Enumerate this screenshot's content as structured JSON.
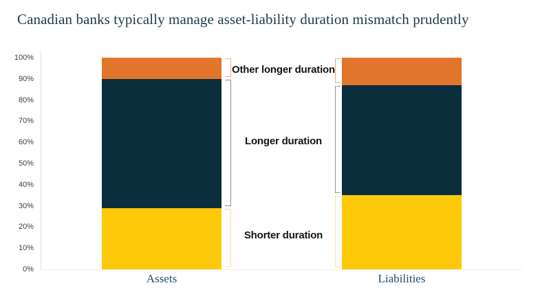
{
  "chart_data": {
    "type": "bar",
    "stacked": true,
    "title": "Canadian banks typically manage asset-liability duration mismatch prudently",
    "categories": [
      "Assets",
      "Liabilities"
    ],
    "series": [
      {
        "name": "Shorter duration",
        "values": [
          29,
          35
        ],
        "color": "#fec90a",
        "bracket_color": "#f9e2a2"
      },
      {
        "name": "Longer duration",
        "values": [
          61,
          52
        ],
        "color": "#0b2e3d",
        "bracket_color": "#7e95a1"
      },
      {
        "name": "Other longer duration",
        "values": [
          10,
          13
        ],
        "color": "#e0752b",
        "bracket_color": "#edab7d"
      }
    ],
    "y_axis": {
      "min": 0,
      "max": 100,
      "ticks": [
        "0%",
        "10%",
        "20%",
        "30%",
        "40%",
        "50%",
        "60%",
        "70%",
        "80%",
        "90%",
        "100%"
      ]
    },
    "grid": false,
    "legend_position": "center-annotations",
    "style": {
      "title_color": "#1b3a4d",
      "category_label_color": "#20506a",
      "annotation_color": "#141414",
      "axis_line_color": "#d9dde0",
      "tick_label_color": "#3d3d3d"
    }
  }
}
